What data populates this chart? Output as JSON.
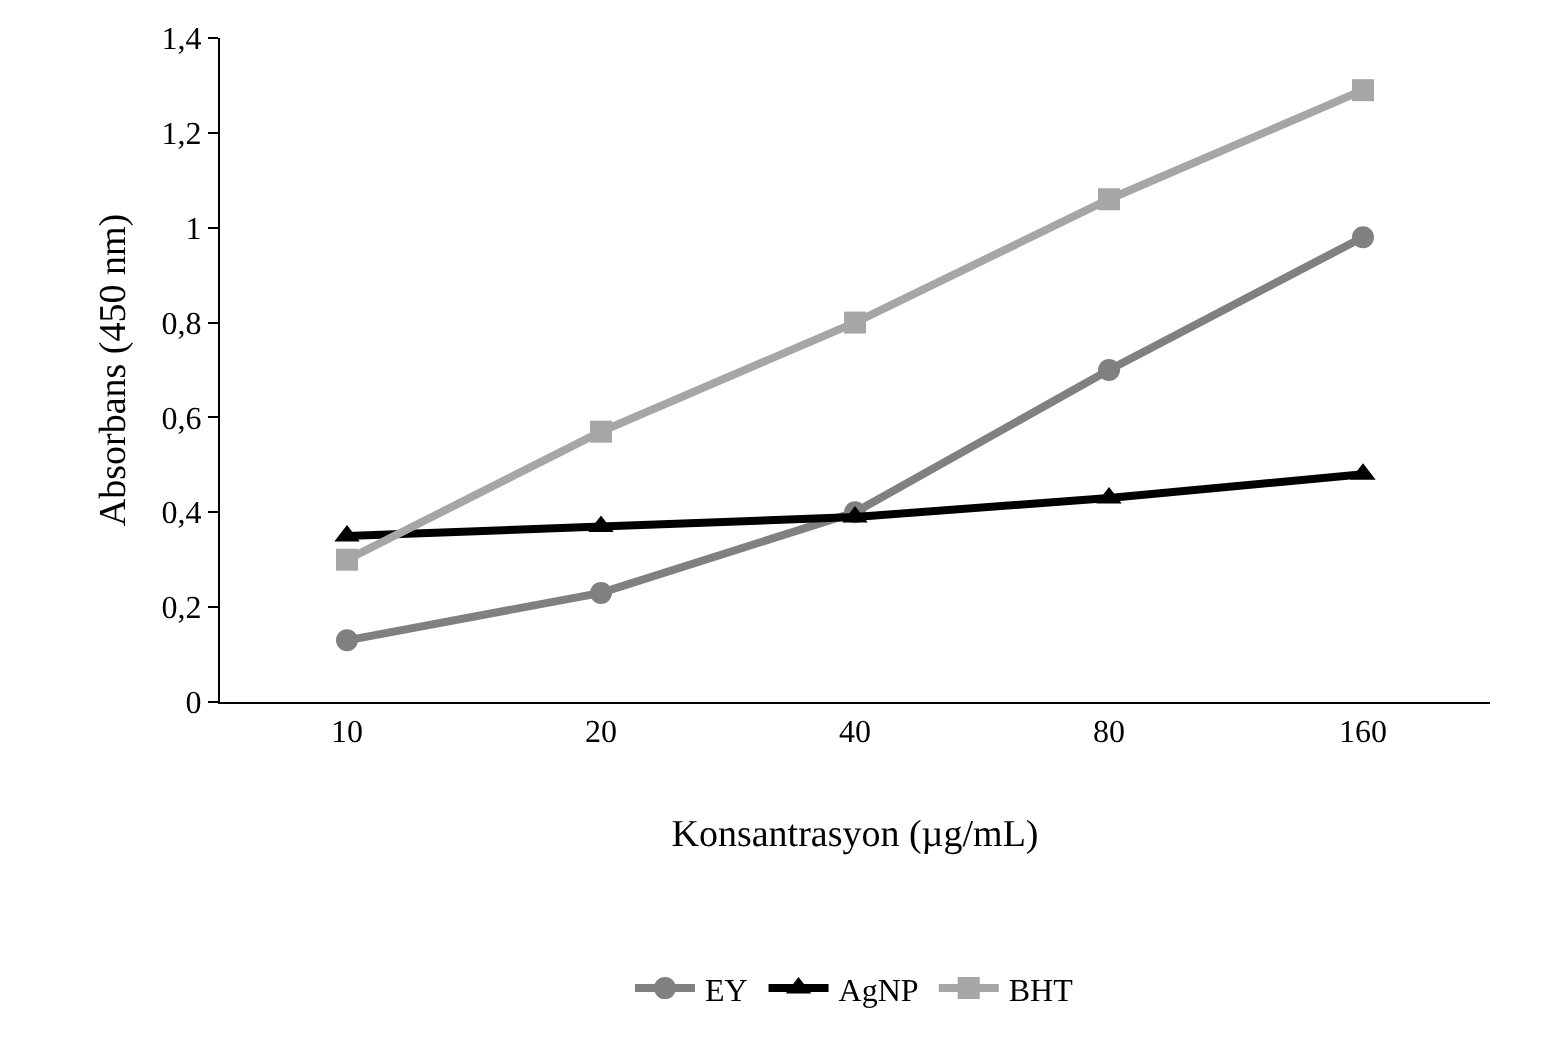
{
  "chart_data": {
    "type": "line",
    "xlabel": "Konsantrasyon (µg/mL)",
    "ylabel": "Absorbans (450 nm)",
    "categories": [
      "10",
      "20",
      "40",
      "80",
      "160"
    ],
    "series": [
      {
        "name": "EY",
        "color": "#808080",
        "marker": "circle",
        "values": [
          0.13,
          0.23,
          0.4,
          0.7,
          0.98
        ]
      },
      {
        "name": "AgNP",
        "color": "#000000",
        "marker": "triangle",
        "values": [
          0.35,
          0.37,
          0.39,
          0.43,
          0.48
        ]
      },
      {
        "name": "BHT",
        "color": "#a6a6a6",
        "marker": "square",
        "values": [
          0.3,
          0.57,
          0.8,
          1.06,
          1.29
        ]
      }
    ],
    "ylim": [
      0,
      1.4
    ],
    "yticks": [
      0,
      {
        "value": 0.2,
        "label": "0,2"
      },
      {
        "value": 0.4,
        "label": "0,4"
      },
      {
        "value": 0.6,
        "label": "0,6"
      },
      {
        "value": 0.8,
        "label": "0,8"
      },
      1,
      {
        "value": 1.2,
        "label": "1,2"
      },
      {
        "value": 1.4,
        "label": "1,4"
      }
    ],
    "legend": "bottom",
    "line_style": "solid"
  }
}
